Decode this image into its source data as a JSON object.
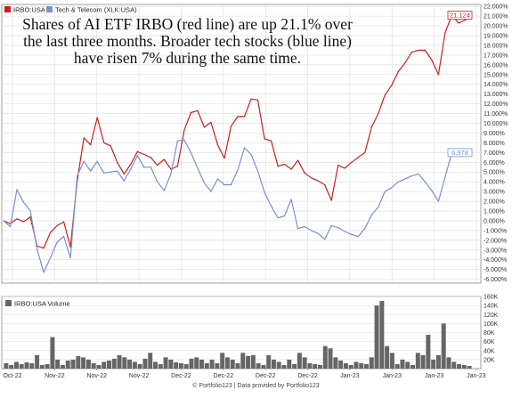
{
  "legend": [
    {
      "name": "IRBO:USA",
      "color": "#cc1f1f"
    },
    {
      "name": "Tech & Telecom (XLK:USA)",
      "color": "#7b8fd1"
    }
  ],
  "annotation": "Shares of AI ETF IRBO (red line) are up 21.1% over the last three months. Broader tech stocks (blue line) have risen 7% during the same time.",
  "footer": "© Portfolio123 | Data provided by Portfolio123",
  "chart_data": [
    {
      "type": "line",
      "x_tick_labels": [
        "Oct-22",
        "Nov-22",
        "Nov-22",
        "Nov-22",
        "Dec-22",
        "Dec-22",
        "Dec-22",
        "Dec-22",
        "Jan-23",
        "Jan-23",
        "Jan-23",
        "Jan-23"
      ],
      "y_tick_labels": [
        "-6.000%",
        "-5.000%",
        "-4.000%",
        "-3.000%",
        "-2.000%",
        "-1.000%",
        "0.000%",
        "1.000%",
        "2.000%",
        "3.000%",
        "4.000%",
        "5.000%",
        "6.000%",
        "7.000%",
        "8.000%",
        "9.000%",
        "10.000%",
        "11.000%",
        "12.000%",
        "13.000%",
        "14.000%",
        "15.000%",
        "16.000%",
        "17.000%",
        "18.000%",
        "19.000%",
        "20.000%",
        "21.000%",
        "22.000%"
      ],
      "ylim": [
        -6.4,
        22.2
      ],
      "y_unit": "%",
      "grid": true,
      "legend_position": "top-left",
      "series": [
        {
          "name": "IRBO:USA",
          "color": "#cc1f1f",
          "end_label": "21.124",
          "values": [
            0.0,
            -0.3,
            0.2,
            -0.1,
            0.4,
            -2.6,
            -2.8,
            -1.2,
            -0.5,
            -0.1,
            -2.7,
            4.1,
            8.5,
            7.8,
            10.6,
            8.0,
            7.7,
            6.0,
            4.8,
            5.8,
            7.1,
            6.8,
            6.5,
            5.7,
            6.3,
            5.3,
            5.6,
            9.3,
            11.1,
            11.3,
            9.6,
            10.1,
            7.8,
            6.4,
            9.7,
            10.7,
            10.7,
            12.5,
            12.4,
            8.4,
            8.2,
            5.6,
            5.8,
            5.3,
            6.2,
            4.9,
            4.4,
            4.1,
            3.7,
            2.1,
            5.7,
            5.4,
            6.0,
            6.5,
            7.0,
            9.6,
            11.0,
            12.9,
            13.9,
            15.3,
            16.2,
            17.3,
            17.5,
            17.5,
            16.5,
            15.0,
            19.3,
            21.1,
            20.3,
            20.6,
            21.1
          ]
        },
        {
          "name": "Tech & Telecom (XLK:USA)",
          "color": "#7b8fd1",
          "end_label": "6.978",
          "values": [
            0.0,
            -0.6,
            3.2,
            1.9,
            1.0,
            -2.9,
            -5.3,
            -3.8,
            -2.2,
            -1.6,
            -3.8,
            4.6,
            6.1,
            5.1,
            6.1,
            4.9,
            5.0,
            5.1,
            4.1,
            5.3,
            6.7,
            5.5,
            5.5,
            4.0,
            3.1,
            4.8,
            8.2,
            8.3,
            7.0,
            5.4,
            3.9,
            3.0,
            4.3,
            3.7,
            3.7,
            5.2,
            7.5,
            6.8,
            5.1,
            2.9,
            1.5,
            0.3,
            0.5,
            2.2,
            -0.8,
            -0.6,
            -1.0,
            -1.3,
            -1.9,
            -0.5,
            -0.7,
            -1.1,
            -1.4,
            -1.6,
            -0.8,
            0.6,
            1.4,
            3.0,
            3.4,
            4.0,
            4.3,
            4.6,
            4.8,
            4.0,
            3.1,
            2.0,
            4.5,
            7.0,
            7.0,
            7.0,
            7.0
          ]
        }
      ]
    },
    {
      "type": "bar",
      "legend": "IRBO:USA Volume",
      "color": "#666666",
      "y_tick_labels": [
        "20K",
        "40K",
        "60K",
        "80K",
        "100K",
        "120K",
        "140K",
        "160K"
      ],
      "ylim": [
        0,
        160000
      ],
      "x_tick_labels": [
        "Oct-22",
        "Nov-22",
        "Nov-22",
        "Nov-22",
        "Dec-22",
        "Dec-22",
        "Dec-22",
        "Dec-22",
        "Jan-23",
        "Jan-23",
        "Jan-23",
        "Jan-23"
      ],
      "values": [
        12000,
        8000,
        15000,
        10000,
        14000,
        12000,
        30000,
        8000,
        10000,
        70000,
        20000,
        8000,
        18000,
        20000,
        28000,
        25000,
        20000,
        12000,
        8000,
        15000,
        18000,
        22000,
        30000,
        25000,
        20000,
        15000,
        10000,
        22000,
        35000,
        15000,
        10000,
        25000,
        20000,
        14000,
        12000,
        10000,
        22000,
        25000,
        20000,
        12000,
        20000,
        12000,
        35000,
        25000,
        20000,
        12000,
        35000,
        28000,
        30000,
        12000,
        8000,
        30000,
        20000,
        15000,
        8000,
        20000,
        10000,
        35000,
        25000,
        12000,
        10000,
        8000,
        50000,
        45000,
        25000,
        18000,
        12000,
        8000,
        15000,
        12000,
        10000,
        25000,
        140000,
        150000,
        50000,
        35000,
        10000,
        20000,
        15000,
        8000,
        35000,
        30000,
        75000,
        20000,
        30000,
        100000,
        25000,
        15000,
        10000,
        8000,
        6000
      ]
    }
  ]
}
